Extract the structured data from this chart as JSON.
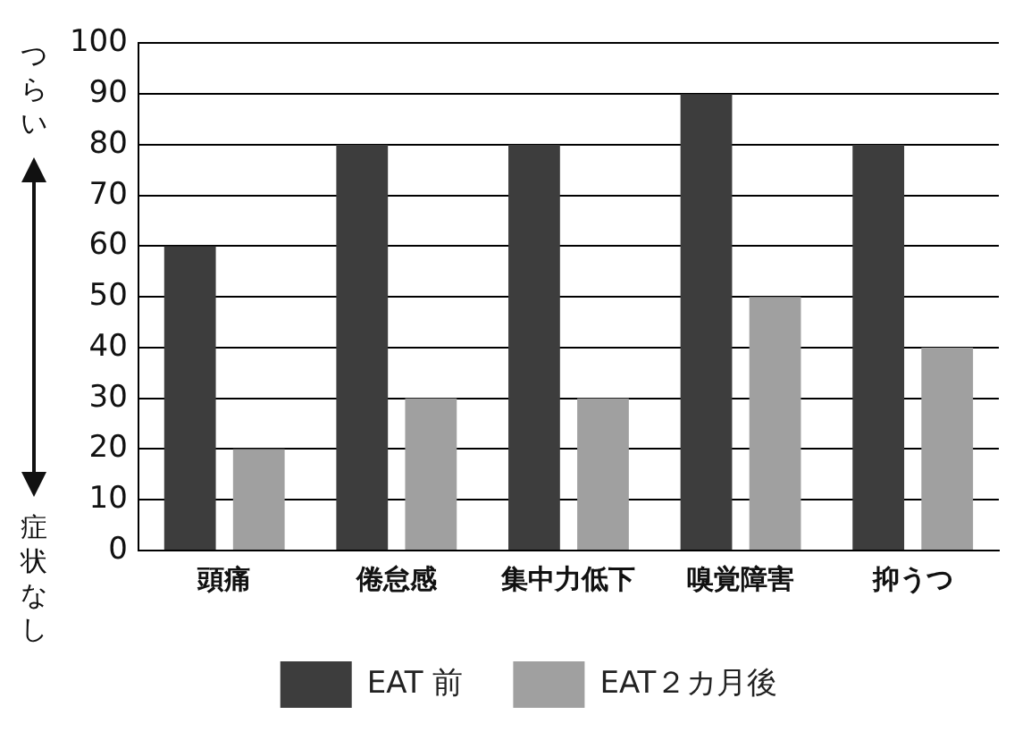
{
  "chart_data": {
    "type": "bar",
    "categories": [
      "頭痛",
      "倦怠感",
      "集中力低下",
      "嗅覚障害",
      "抑うつ"
    ],
    "series": [
      {
        "name": "EAT 前",
        "color": "#3d3d3d",
        "values": [
          60,
          80,
          80,
          90,
          80
        ]
      },
      {
        "name": "EAT２カ月後",
        "color": "#a0a0a0",
        "values": [
          20,
          30,
          30,
          50,
          40
        ]
      }
    ],
    "ylim": [
      0,
      100
    ],
    "yticks": [
      0,
      10,
      20,
      30,
      40,
      50,
      60,
      70,
      80,
      90,
      100
    ],
    "grid": "y",
    "legend": "bottom",
    "annotations": [
      "つらい",
      "症状なし"
    ]
  }
}
